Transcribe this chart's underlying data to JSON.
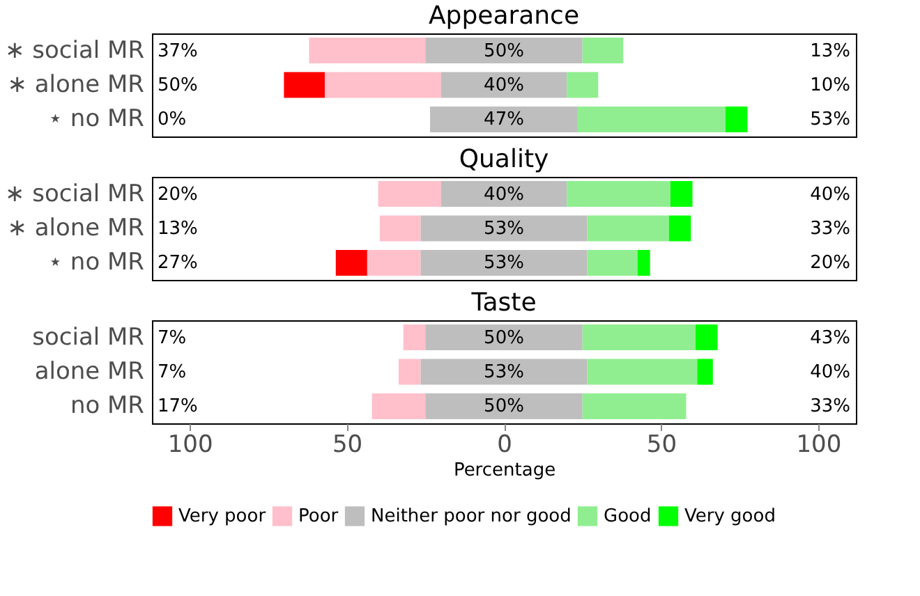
{
  "chart_data": [
    {
      "type": "bar",
      "orientation": "horizontal",
      "title": "Appearance",
      "legend": "bottom",
      "categories": [
        "∗ social MR",
        "∗ alone MR",
        "⋆ no MR"
      ],
      "series": [
        {
          "name": "Very poor",
          "color": "#ff0000",
          "values": [
            null,
            13,
            null
          ],
          "base": [
            null,
            -70,
            null
          ]
        },
        {
          "name": "Poor",
          "color": "#ffc0cb",
          "values": [
            37,
            37,
            null
          ],
          "base": [
            -62,
            -57,
            null
          ]
        },
        {
          "name": "Neither poor nor good",
          "color": "#bebebe",
          "values": [
            50,
            40,
            47
          ],
          "base": [
            -25,
            -20,
            -23.5
          ],
          "value_labels": [
            "50%",
            "40%",
            "47%"
          ]
        },
        {
          "name": "Good",
          "color": "#90ee90",
          "values": [
            13,
            10,
            47
          ],
          "base": [
            25,
            20,
            23.5
          ]
        },
        {
          "name": "Very good",
          "color": "#00ff00",
          "values": [
            null,
            null,
            7
          ],
          "base": [
            null,
            null,
            70.5
          ]
        }
      ],
      "totals": [
        [
          "37%",
          "13%"
        ],
        [
          "50%",
          "10%"
        ],
        [
          "0%",
          "53%"
        ]
      ],
      "xlim": [
        -112,
        112
      ],
      "tick_labels": "y"
    },
    {
      "type": "bar",
      "orientation": "horizontal",
      "title": "Quality",
      "categories": [
        "∗ social MR",
        "∗ alone MR",
        "⋆ no MR"
      ],
      "series": [
        {
          "name": "Very poor",
          "color": "#ff0000",
          "values": [
            null,
            null,
            10
          ],
          "base": [
            null,
            null,
            -53.5
          ]
        },
        {
          "name": "Poor",
          "color": "#ffc0cb",
          "values": [
            20,
            13,
            17
          ],
          "base": [
            -40,
            -39.5,
            -43.5
          ]
        },
        {
          "name": "Neither poor nor good",
          "color": "#bebebe",
          "values": [
            40,
            53,
            53
          ],
          "base": [
            -20,
            -26.5,
            -26.5
          ],
          "value_labels": [
            "40%",
            "53%",
            "53%"
          ]
        },
        {
          "name": "Good",
          "color": "#90ee90",
          "values": [
            33,
            26,
            16
          ],
          "base": [
            20,
            26.5,
            26.5
          ]
        },
        {
          "name": "Very good",
          "color": "#00ff00",
          "values": [
            7,
            7,
            4
          ],
          "base": [
            53,
            52.5,
            42.5
          ]
        }
      ],
      "totals": [
        [
          "20%",
          "40%"
        ],
        [
          "13%",
          "33%"
        ],
        [
          "27%",
          "20%"
        ]
      ],
      "xlim": [
        -112,
        112
      ],
      "tick_labels": "y"
    },
    {
      "type": "bar",
      "orientation": "horizontal",
      "title": "Taste",
      "categories": [
        "social MR",
        "alone MR",
        "no MR"
      ],
      "xlabel": "Percentage",
      "series": [
        {
          "name": "Very poor",
          "color": "#ff0000",
          "values": [
            null,
            null,
            null
          ],
          "base": [
            null,
            null,
            null
          ]
        },
        {
          "name": "Poor",
          "color": "#ffc0cb",
          "values": [
            7,
            7,
            17
          ],
          "base": [
            -32,
            -33.5,
            -42
          ]
        },
        {
          "name": "Neither poor nor good",
          "color": "#bebebe",
          "values": [
            50,
            53,
            50
          ],
          "base": [
            -25,
            -26.5,
            -25
          ],
          "value_labels": [
            "50%",
            "53%",
            "50%"
          ]
        },
        {
          "name": "Good",
          "color": "#90ee90",
          "values": [
            36,
            35,
            33
          ],
          "base": [
            25,
            26.5,
            25
          ]
        },
        {
          "name": "Very good",
          "color": "#00ff00",
          "values": [
            7,
            5,
            null
          ],
          "base": [
            61,
            61.5,
            null
          ]
        }
      ],
      "totals": [
        [
          "7%",
          "43%"
        ],
        [
          "7%",
          "40%"
        ],
        [
          "17%",
          "33%"
        ]
      ],
      "xlim": [
        -112,
        112
      ],
      "xticks": [
        {
          "value": -100,
          "label": "100"
        },
        {
          "value": -50,
          "label": "50"
        },
        0,
        50,
        100
      ]
    }
  ]
}
